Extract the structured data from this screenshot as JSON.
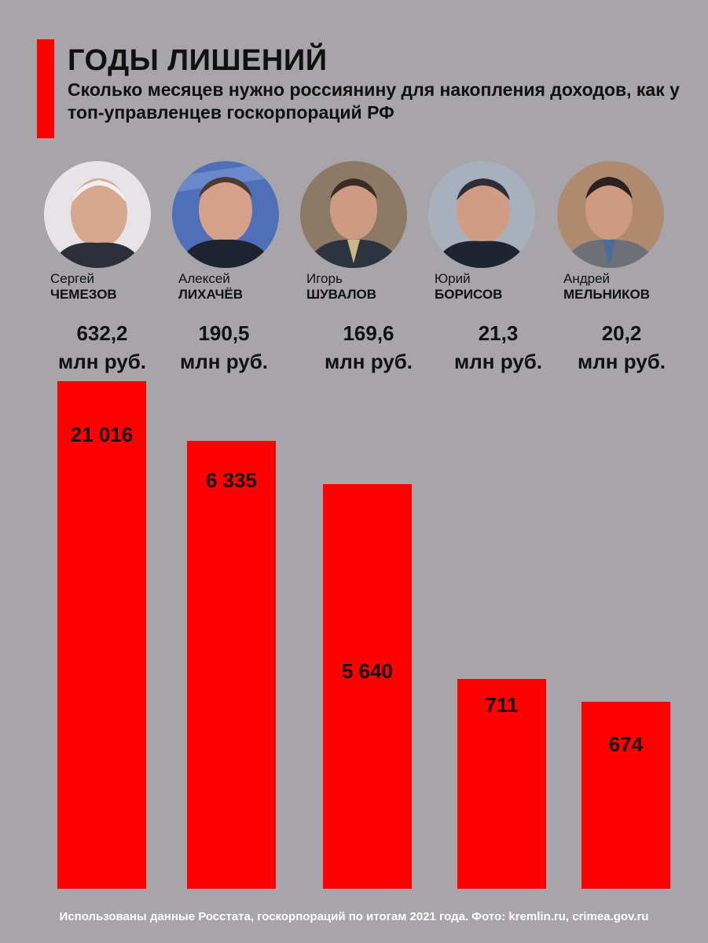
{
  "header": {
    "title": "ГОДЫ ЛИШЕНИЙ",
    "subtitle": "Сколько месяцев нужно россиянину для накопления доходов, как у топ-управленцев госкорпораций РФ"
  },
  "people": [
    {
      "first": "Сергей",
      "last": "ЧЕМЕЗОВ",
      "income": "632,2",
      "unit": "млн руб.",
      "avatar_icon": "portrait-photo-icon"
    },
    {
      "first": "Алексей",
      "last": "ЛИХАЧЁВ",
      "income": "190,5",
      "unit": "млн руб.",
      "avatar_icon": "portrait-photo-icon"
    },
    {
      "first": "Игорь",
      "last": "ШУВАЛОВ",
      "income": "169,6",
      "unit": "млн руб.",
      "avatar_icon": "portrait-photo-icon"
    },
    {
      "first": "Юрий",
      "last": "БОРИСОВ",
      "income": "21,3",
      "unit": "млн руб.",
      "avatar_icon": "portrait-photo-icon"
    },
    {
      "first": "Андрей",
      "last": "МЕЛЬНИКОВ",
      "income": "20,2",
      "unit": "млн руб.",
      "avatar_icon": "portrait-photo-icon"
    }
  ],
  "chart_data": {
    "type": "bar",
    "title": "",
    "xlabel": "",
    "ylabel": "",
    "categories": [
      "ЧЕМЕЗОВ",
      "ЛИХАЧЁВ",
      "ШУВАЛОВ",
      "БОРИСОВ",
      "МЕЛЬНИКОВ"
    ],
    "values": [
      21016,
      6335,
      5640,
      711,
      674
    ],
    "labels": [
      "21 016",
      "6 335",
      "5 640",
      "711",
      "674"
    ],
    "bar_color": "#ff0000",
    "grid": false,
    "legend": "none",
    "note": "non-linear scale"
  },
  "colors": {
    "background": "#a7a5aa",
    "accent": "#ff0000",
    "text": "#111111",
    "footer": "#ffffff"
  },
  "footer": {
    "source": "Использованы данные Росстата, госкорпораций по итогам 2021 года. Фото: kremlin.ru, crimea.gov.ru"
  }
}
